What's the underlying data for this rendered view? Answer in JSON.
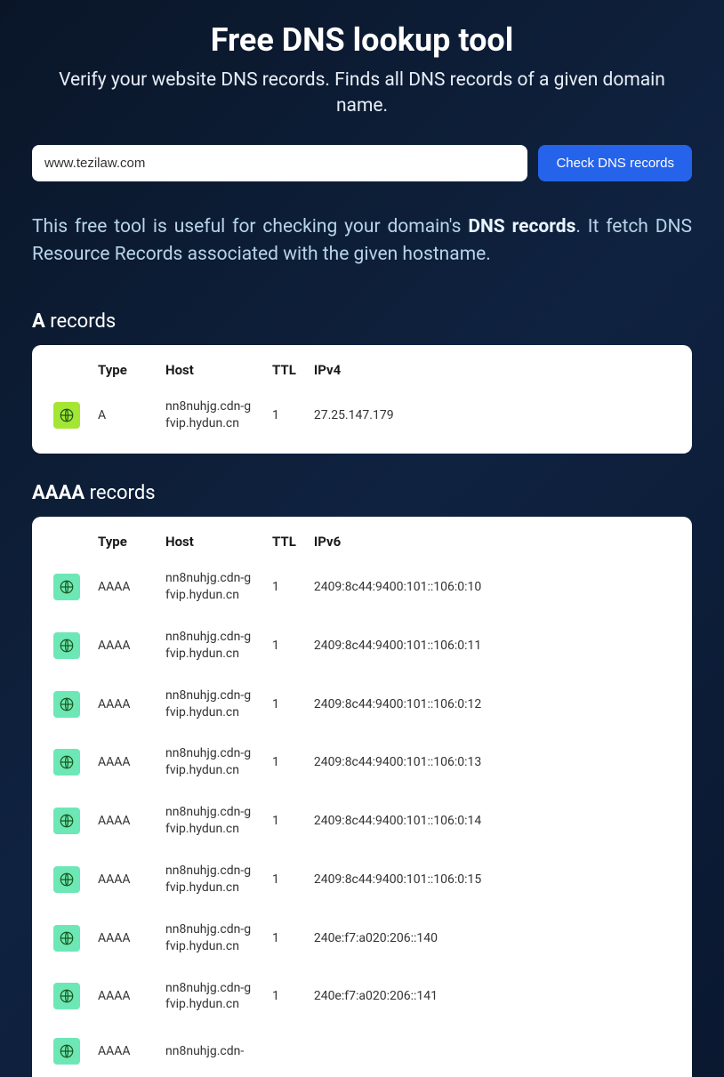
{
  "header": {
    "title": "Free DNS lookup tool",
    "subtitle": "Verify your website DNS records. Finds all DNS records of a given domain name."
  },
  "search": {
    "value": "www.tezilaw.com",
    "placeholder": "",
    "button_label": "Check DNS records"
  },
  "description": {
    "prefix": "This free tool is useful for checking your domain's ",
    "bold": "DNS records",
    "suffix": ". It fetch DNS Resource Records associated with the given hostname."
  },
  "colors": {
    "bg_gradient_start": "#0a1628",
    "bg_gradient_mid": "#0f2240",
    "bg_gradient_end": "#0a1830",
    "button_bg": "#2563eb",
    "card_bg": "#ffffff",
    "description_text": "#b8d4e8",
    "icon_a_bg": "#a5e635",
    "icon_aaaa_bg": "#6ee7b7",
    "icon_stroke": "#1a5a1a"
  },
  "sections": {
    "a": {
      "heading_bold": "A",
      "heading_rest": " records",
      "columns": [
        "Type",
        "Host",
        "TTL",
        "IPv4"
      ],
      "rows": [
        {
          "type": "A",
          "host": "nn8nuhjg.cdn-gfvip.hydun.cn",
          "ttl": "1",
          "value": "27.25.147.179"
        }
      ]
    },
    "aaaa": {
      "heading_bold": "AAAA",
      "heading_rest": " records",
      "columns": [
        "Type",
        "Host",
        "TTL",
        "IPv6"
      ],
      "rows": [
        {
          "type": "AAAA",
          "host": "nn8nuhjg.cdn-gfvip.hydun.cn",
          "ttl": "1",
          "value": "2409:8c44:9400:101::106:0:10"
        },
        {
          "type": "AAAA",
          "host": "nn8nuhjg.cdn-gfvip.hydun.cn",
          "ttl": "1",
          "value": "2409:8c44:9400:101::106:0:11"
        },
        {
          "type": "AAAA",
          "host": "nn8nuhjg.cdn-gfvip.hydun.cn",
          "ttl": "1",
          "value": "2409:8c44:9400:101::106:0:12"
        },
        {
          "type": "AAAA",
          "host": "nn8nuhjg.cdn-gfvip.hydun.cn",
          "ttl": "1",
          "value": "2409:8c44:9400:101::106:0:13"
        },
        {
          "type": "AAAA",
          "host": "nn8nuhjg.cdn-gfvip.hydun.cn",
          "ttl": "1",
          "value": "2409:8c44:9400:101::106:0:14"
        },
        {
          "type": "AAAA",
          "host": "nn8nuhjg.cdn-gfvip.hydun.cn",
          "ttl": "1",
          "value": "2409:8c44:9400:101::106:0:15"
        },
        {
          "type": "AAAA",
          "host": "nn8nuhjg.cdn-gfvip.hydun.cn",
          "ttl": "1",
          "value": "240e:f7:a020:206::140"
        },
        {
          "type": "AAAA",
          "host": "nn8nuhjg.cdn-gfvip.hydun.cn",
          "ttl": "1",
          "value": "240e:f7:a020:206::141"
        },
        {
          "type": "AAAA",
          "host": "nn8nuhjg.cdn-",
          "ttl": "",
          "value": ""
        }
      ]
    }
  }
}
